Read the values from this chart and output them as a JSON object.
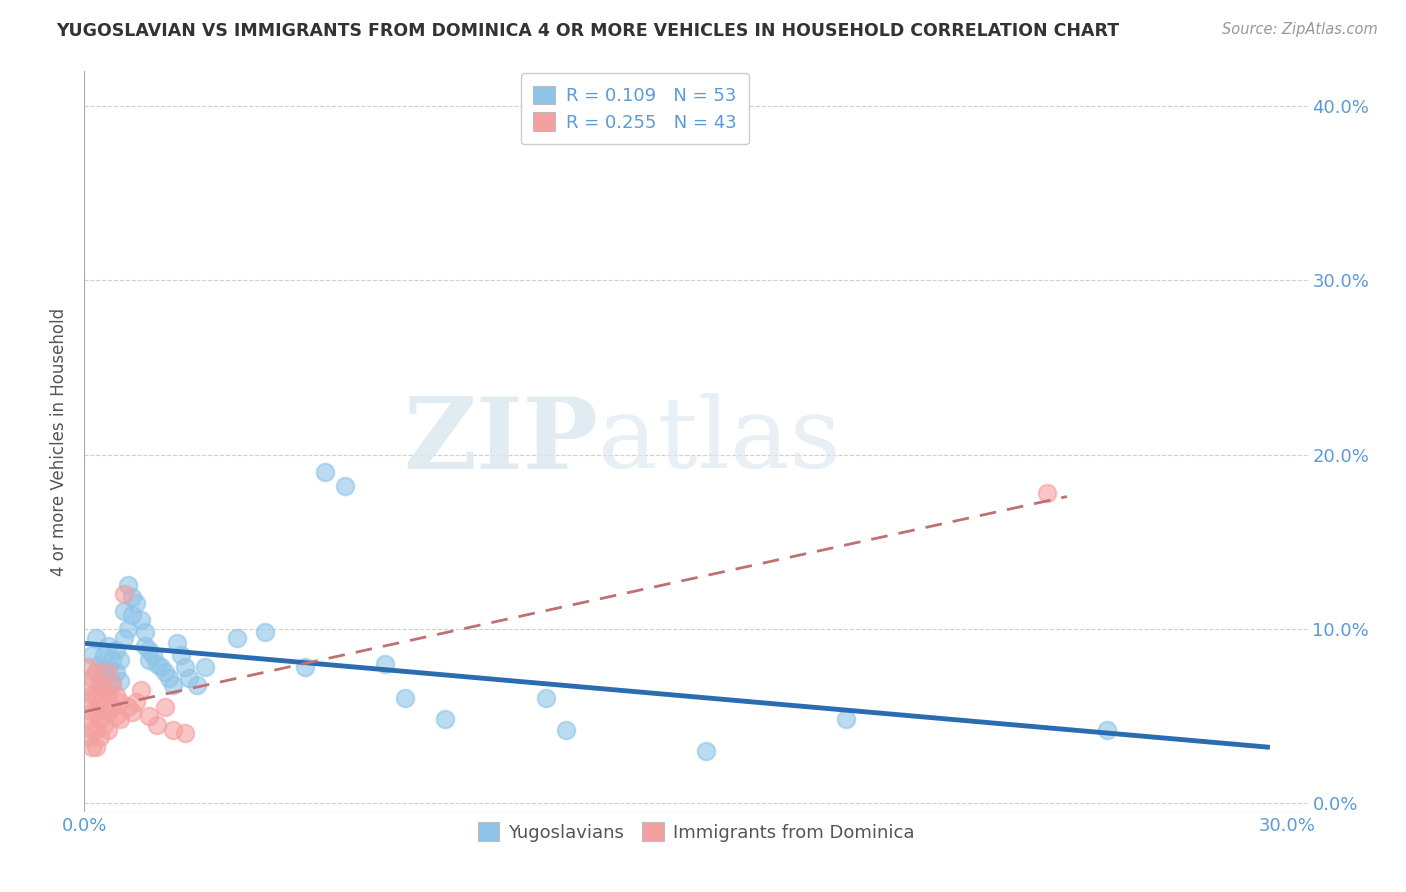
{
  "title": "YUGOSLAVIAN VS IMMIGRANTS FROM DOMINICA 4 OR MORE VEHICLES IN HOUSEHOLD CORRELATION CHART",
  "source": "Source: ZipAtlas.com",
  "ylabel": "4 or more Vehicles in Household",
  "xlim": [
    0.0,
    0.305
  ],
  "ylim": [
    -0.005,
    0.42
  ],
  "r_yugo": 0.109,
  "n_yugo": 53,
  "r_dom": 0.255,
  "n_dom": 43,
  "legend_labels": [
    "Yugoslavians",
    "Immigrants from Dominica"
  ],
  "watermark_zip": "ZIP",
  "watermark_atlas": "atlas",
  "blue_color": "#8ec4e8",
  "pink_color": "#f4a0a0",
  "blue_line_color": "#2b6cb0",
  "pink_line_color": "#c07070",
  "title_color": "#333333",
  "tick_color": "#5b9bd5",
  "grid_color": "#d0d0d0",
  "background_color": "#ffffff",
  "x_ticks": [
    0.0,
    0.3
  ],
  "y_ticks": [
    0.0,
    0.1,
    0.2,
    0.3,
    0.4
  ],
  "yugo_points": [
    [
      0.002,
      0.085
    ],
    [
      0.003,
      0.075
    ],
    [
      0.003,
      0.095
    ],
    [
      0.004,
      0.08
    ],
    [
      0.004,
      0.07
    ],
    [
      0.005,
      0.085
    ],
    [
      0.005,
      0.075
    ],
    [
      0.005,
      0.065
    ],
    [
      0.006,
      0.09
    ],
    [
      0.006,
      0.078
    ],
    [
      0.007,
      0.082
    ],
    [
      0.007,
      0.07
    ],
    [
      0.008,
      0.088
    ],
    [
      0.008,
      0.075
    ],
    [
      0.009,
      0.082
    ],
    [
      0.009,
      0.07
    ],
    [
      0.01,
      0.11
    ],
    [
      0.01,
      0.095
    ],
    [
      0.011,
      0.125
    ],
    [
      0.011,
      0.1
    ],
    [
      0.012,
      0.118
    ],
    [
      0.012,
      0.108
    ],
    [
      0.013,
      0.115
    ],
    [
      0.014,
      0.105
    ],
    [
      0.015,
      0.098
    ],
    [
      0.015,
      0.09
    ],
    [
      0.016,
      0.088
    ],
    [
      0.016,
      0.082
    ],
    [
      0.017,
      0.085
    ],
    [
      0.018,
      0.08
    ],
    [
      0.019,
      0.078
    ],
    [
      0.02,
      0.075
    ],
    [
      0.021,
      0.072
    ],
    [
      0.022,
      0.068
    ],
    [
      0.023,
      0.092
    ],
    [
      0.024,
      0.085
    ],
    [
      0.025,
      0.078
    ],
    [
      0.026,
      0.072
    ],
    [
      0.028,
      0.068
    ],
    [
      0.03,
      0.078
    ],
    [
      0.038,
      0.095
    ],
    [
      0.045,
      0.098
    ],
    [
      0.055,
      0.078
    ],
    [
      0.06,
      0.19
    ],
    [
      0.065,
      0.182
    ],
    [
      0.075,
      0.08
    ],
    [
      0.08,
      0.06
    ],
    [
      0.09,
      0.048
    ],
    [
      0.115,
      0.06
    ],
    [
      0.12,
      0.042
    ],
    [
      0.155,
      0.03
    ],
    [
      0.19,
      0.048
    ],
    [
      0.255,
      0.042
    ]
  ],
  "dom_points": [
    [
      0.001,
      0.078
    ],
    [
      0.001,
      0.068
    ],
    [
      0.001,
      0.058
    ],
    [
      0.001,
      0.048
    ],
    [
      0.001,
      0.038
    ],
    [
      0.002,
      0.072
    ],
    [
      0.002,
      0.062
    ],
    [
      0.002,
      0.052
    ],
    [
      0.002,
      0.042
    ],
    [
      0.002,
      0.032
    ],
    [
      0.003,
      0.075
    ],
    [
      0.003,
      0.062
    ],
    [
      0.003,
      0.052
    ],
    [
      0.003,
      0.042
    ],
    [
      0.003,
      0.032
    ],
    [
      0.004,
      0.068
    ],
    [
      0.004,
      0.058
    ],
    [
      0.004,
      0.048
    ],
    [
      0.004,
      0.038
    ],
    [
      0.005,
      0.065
    ],
    [
      0.005,
      0.055
    ],
    [
      0.005,
      0.045
    ],
    [
      0.006,
      0.075
    ],
    [
      0.006,
      0.062
    ],
    [
      0.006,
      0.052
    ],
    [
      0.006,
      0.042
    ],
    [
      0.007,
      0.068
    ],
    [
      0.007,
      0.055
    ],
    [
      0.008,
      0.062
    ],
    [
      0.008,
      0.05
    ],
    [
      0.009,
      0.058
    ],
    [
      0.009,
      0.048
    ],
    [
      0.01,
      0.12
    ],
    [
      0.011,
      0.055
    ],
    [
      0.012,
      0.052
    ],
    [
      0.013,
      0.058
    ],
    [
      0.014,
      0.065
    ],
    [
      0.016,
      0.05
    ],
    [
      0.018,
      0.045
    ],
    [
      0.02,
      0.055
    ],
    [
      0.022,
      0.042
    ],
    [
      0.025,
      0.04
    ],
    [
      0.24,
      0.178
    ]
  ]
}
